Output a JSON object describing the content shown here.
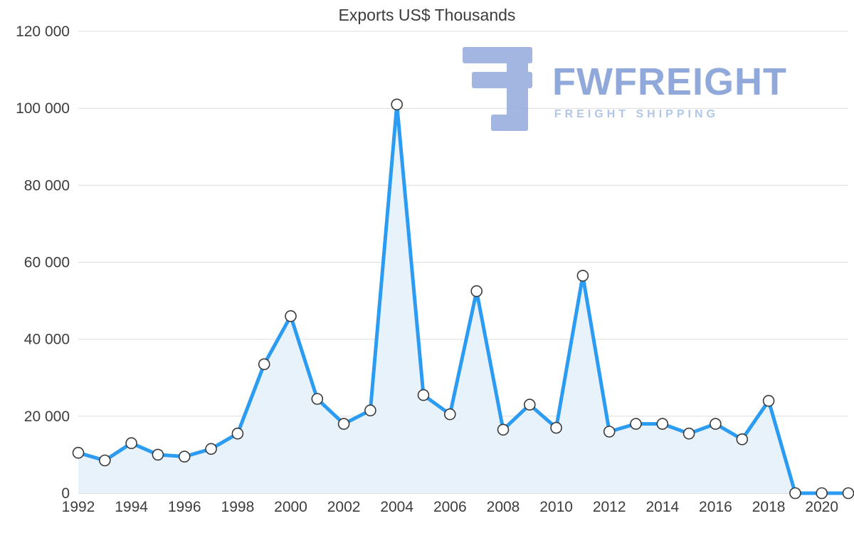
{
  "chart_data": {
    "type": "area",
    "title": "Exports US$ Thousands",
    "x": [
      1992,
      1993,
      1994,
      1995,
      1996,
      1997,
      1998,
      1999,
      2000,
      2001,
      2002,
      2003,
      2004,
      2005,
      2006,
      2007,
      2008,
      2009,
      2010,
      2011,
      2012,
      2013,
      2014,
      2015,
      2016,
      2017,
      2018,
      2019,
      2020,
      2021
    ],
    "values": [
      10500,
      8500,
      13000,
      10000,
      9500,
      11500,
      15500,
      33500,
      46000,
      24500,
      18000,
      21500,
      101000,
      25500,
      20500,
      52500,
      16500,
      23000,
      17000,
      56500,
      16000,
      18000,
      18000,
      15500,
      18000,
      14000,
      24000,
      0,
      0,
      0
    ],
    "ylim": [
      0,
      120000
    ],
    "y_ticks": [
      0,
      20000,
      40000,
      60000,
      80000,
      100000,
      120000
    ],
    "y_tick_labels": [
      "0",
      "20 000",
      "40 000",
      "60 000",
      "80 000",
      "100 000",
      "120 000"
    ],
    "x_tick_labels": [
      "1992",
      "1994",
      "1996",
      "1998",
      "2000",
      "2002",
      "2004",
      "2006",
      "2008",
      "2010",
      "2012",
      "2014",
      "2016",
      "2018",
      "2020"
    ],
    "grid": true,
    "legend": "none",
    "line_color": "#2b9cf2",
    "fill_color": "#e7f2fb",
    "marker_fill": "#ffffff",
    "marker_stroke": "#3a3a3a",
    "grid_color": "#dcdcdc",
    "axis_color": "#c4c4c4"
  },
  "logo": {
    "brand": "FWFREIGHT",
    "tagline": "FREIGHT SHIPPING",
    "glyph_color": "#93a9dc"
  }
}
